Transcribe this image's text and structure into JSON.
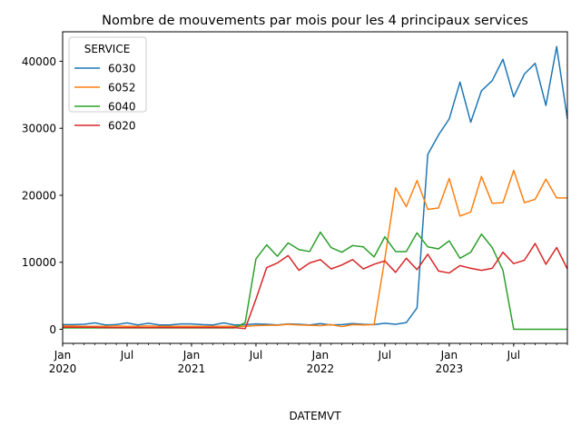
{
  "chart_data": {
    "type": "line",
    "title": "Nombre de mouvements par mois pour les 4 principaux services",
    "xlabel": "DATEMVT",
    "ylabel": "",
    "ylim": [
      -2100,
      44400
    ],
    "xlim": [
      "2020-01",
      "2023-12"
    ],
    "yticks": [
      0,
      10000,
      20000,
      30000,
      40000
    ],
    "yticklabels": [
      "0",
      "10000",
      "20000",
      "30000",
      "40000"
    ],
    "x_major_ticks": [
      {
        "at": "2020-01",
        "label": "Jan",
        "year": "2020"
      },
      {
        "at": "2020-07",
        "label": "Jul",
        "year": ""
      },
      {
        "at": "2021-01",
        "label": "Jan",
        "year": "2021"
      },
      {
        "at": "2021-07",
        "label": "Jul",
        "year": ""
      },
      {
        "at": "2022-01",
        "label": "Jan",
        "year": "2022"
      },
      {
        "at": "2022-07",
        "label": "Jul",
        "year": ""
      },
      {
        "at": "2023-01",
        "label": "Jan",
        "year": "2023"
      },
      {
        "at": "2023-07",
        "label": "Jul",
        "year": ""
      }
    ],
    "legend": {
      "title": "SERVICE",
      "placement": "upper-left"
    },
    "x": [
      "2020-01",
      "2020-02",
      "2020-03",
      "2020-04",
      "2020-05",
      "2020-06",
      "2020-07",
      "2020-08",
      "2020-09",
      "2020-10",
      "2020-11",
      "2020-12",
      "2021-01",
      "2021-02",
      "2021-03",
      "2021-04",
      "2021-05",
      "2021-06",
      "2021-07",
      "2021-08",
      "2021-09",
      "2021-10",
      "2021-11",
      "2021-12",
      "2022-01",
      "2022-02",
      "2022-03",
      "2022-04",
      "2022-05",
      "2022-06",
      "2022-07",
      "2022-08",
      "2022-09",
      "2022-10",
      "2022-11",
      "2022-12",
      "2023-01",
      "2023-02",
      "2023-03",
      "2023-04",
      "2023-05",
      "2023-06",
      "2023-07",
      "2023-08",
      "2023-09",
      "2023-10",
      "2023-11",
      "2023-12"
    ],
    "series": [
      {
        "name": "6030",
        "color": "#1f77b4",
        "values": [
          700,
          700,
          750,
          950,
          650,
          700,
          950,
          650,
          900,
          650,
          650,
          800,
          800,
          700,
          650,
          950,
          650,
          700,
          800,
          750,
          650,
          800,
          750,
          650,
          850,
          650,
          700,
          850,
          750,
          700,
          900,
          750,
          1000,
          3200,
          26100,
          29000,
          31400,
          36900,
          30900,
          35600,
          37100,
          40300,
          34700,
          38100,
          39700,
          33400,
          42200,
          31400
        ]
      },
      {
        "name": "6052",
        "color": "#ff7f0e",
        "values": [
          500,
          500,
          450,
          450,
          450,
          500,
          450,
          450,
          500,
          450,
          450,
          450,
          450,
          450,
          450,
          450,
          450,
          450,
          550,
          600,
          600,
          750,
          650,
          600,
          550,
          700,
          400,
          700,
          650,
          700,
          10500,
          21100,
          18300,
          22200,
          17900,
          18100,
          22500,
          16900,
          17500,
          22800,
          18800,
          18900,
          23700,
          18900,
          19400,
          22400,
          19600,
          19600
        ]
      },
      {
        "name": "6040",
        "color": "#2ca02c",
        "values": [
          200,
          200,
          200,
          200,
          200,
          200,
          200,
          200,
          200,
          200,
          200,
          200,
          200,
          200,
          200,
          200,
          200,
          1000,
          10500,
          12600,
          10900,
          12900,
          11900,
          11600,
          14500,
          12200,
          11500,
          12500,
          12300,
          10800,
          13800,
          11600,
          11600,
          14400,
          12300,
          12000,
          13200,
          10600,
          11500,
          14200,
          12200,
          8800,
          0,
          0,
          0,
          0,
          0,
          0
        ]
      },
      {
        "name": "6020",
        "color": "#d62728",
        "values": [
          300,
          300,
          300,
          300,
          250,
          250,
          250,
          250,
          250,
          250,
          250,
          250,
          250,
          250,
          250,
          250,
          250,
          100,
          4500,
          9200,
          9900,
          11000,
          8800,
          9900,
          10400,
          9000,
          9600,
          10400,
          9000,
          9700,
          10200,
          8500,
          10600,
          8900,
          11200,
          8700,
          8400,
          9500,
          9100,
          8800,
          9100,
          11500,
          9800,
          10300,
          12800,
          9700,
          12200,
          9000
        ]
      }
    ]
  }
}
